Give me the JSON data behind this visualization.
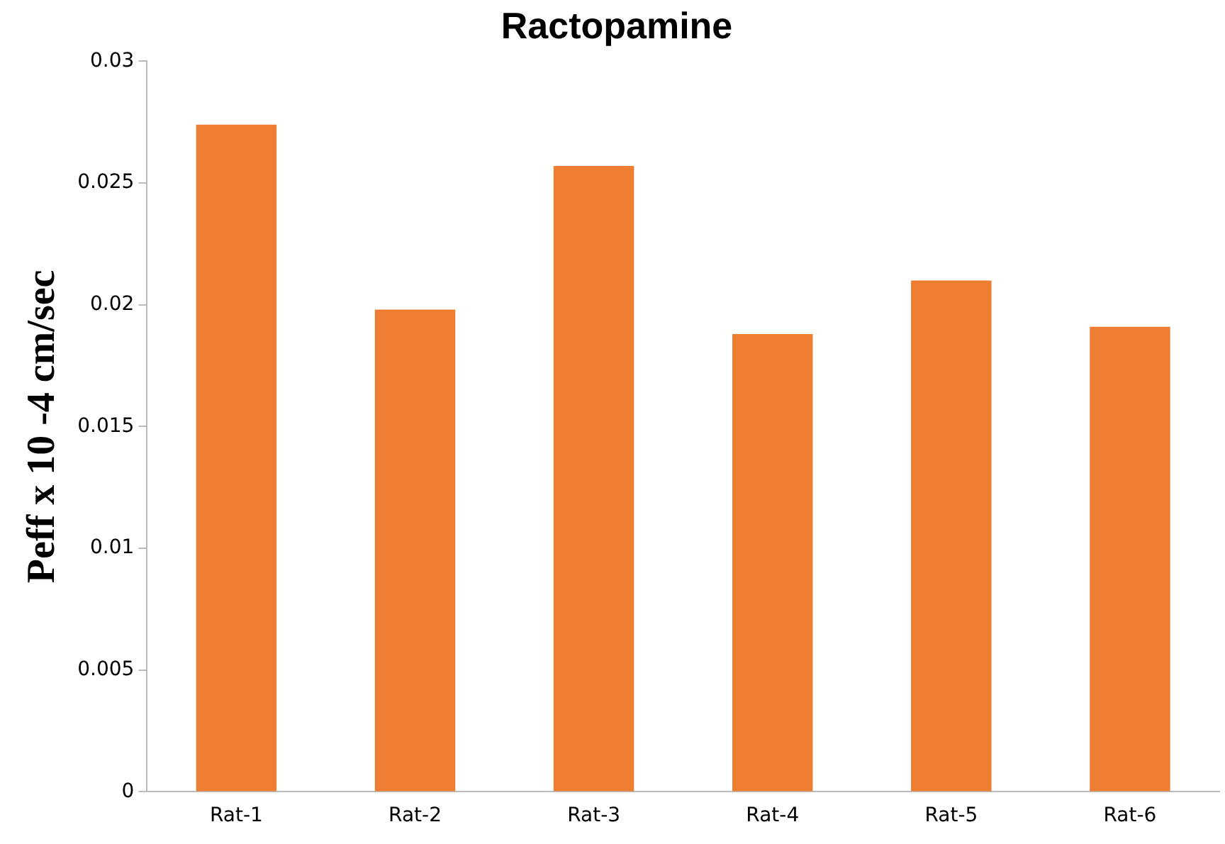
{
  "chart_data": {
    "type": "bar",
    "title": "Ractopamine",
    "ylabel": "Peff x 10 -4 cm/sec",
    "categories": [
      "Rat-1",
      "Rat-2",
      "Rat-3",
      "Rat-4",
      "Rat-5",
      "Rat-6"
    ],
    "values": [
      0.0274,
      0.0198,
      0.0257,
      0.0188,
      0.021,
      0.0191
    ],
    "color": "#ed7d31",
    "ylim": [
      0,
      0.03
    ],
    "yticks": [
      0,
      0.005,
      0.01,
      0.015,
      0.02,
      0.025,
      0.03
    ],
    "grid": false,
    "legend": false
  }
}
